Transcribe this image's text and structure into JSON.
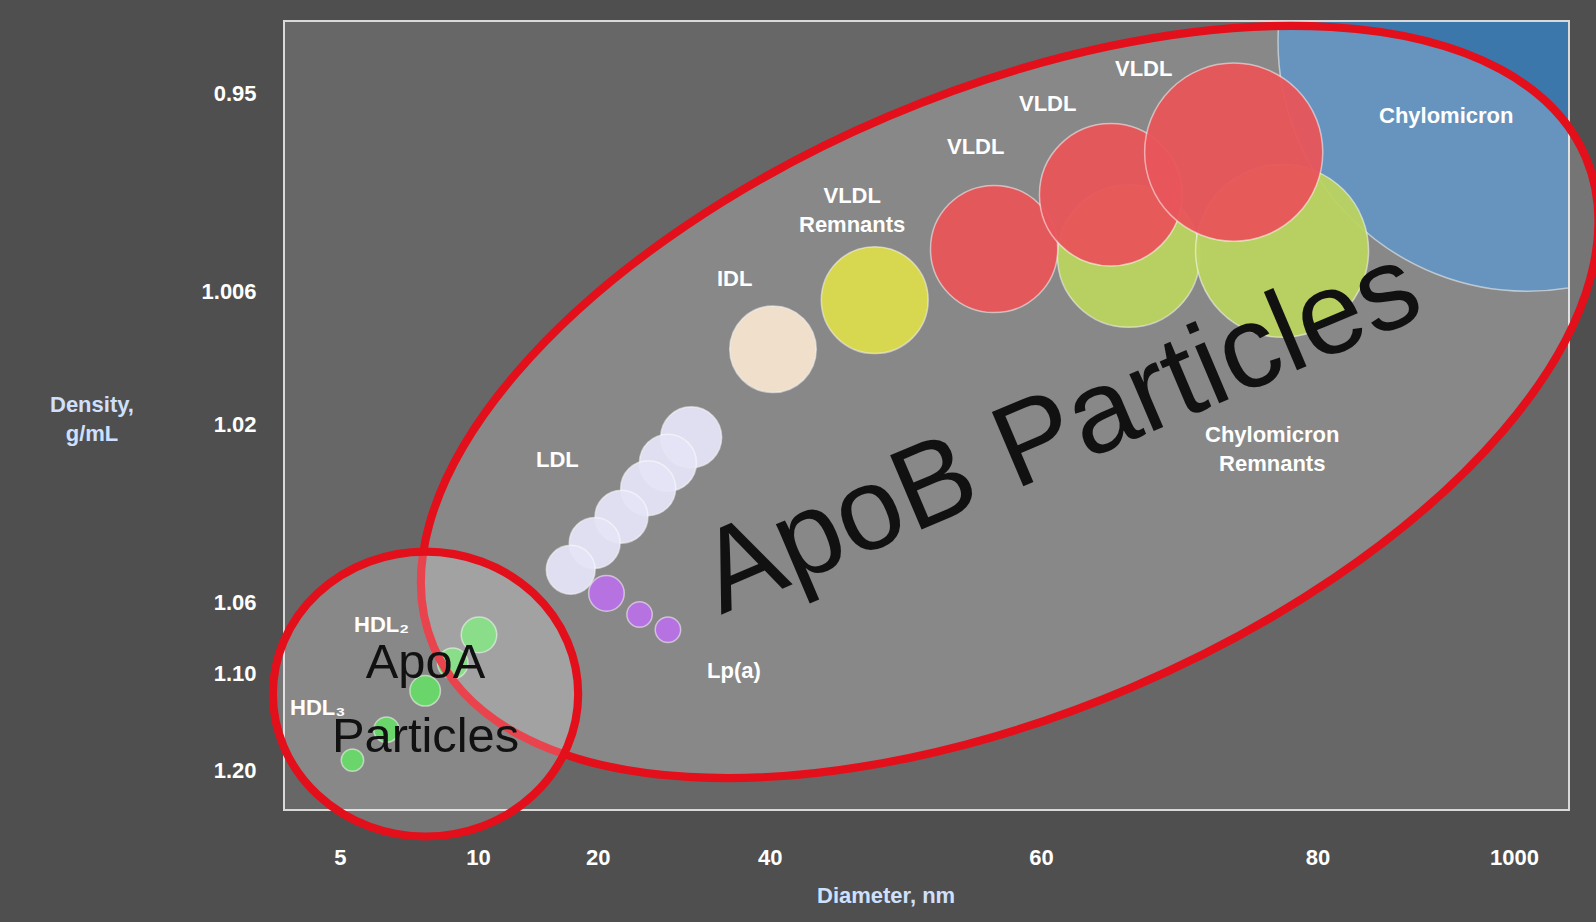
{
  "chart_data": {
    "type": "bubble",
    "x_label": "Diameter, nm",
    "y_label": "Density, g/mL",
    "xlim": [
      3,
      1250
    ],
    "xticks": [
      5,
      10,
      20,
      40,
      60,
      80,
      1000
    ],
    "ylim": [
      1.24,
      0.93
    ],
    "yticks": [
      0.95,
      1.006,
      1.02,
      1.06,
      {
        "value": 1.1,
        "label": "1.10"
      },
      {
        "value": 1.2,
        "label": "1.20"
      }
    ],
    "grid": false,
    "series": [
      {
        "name": "Chylomicron",
        "color": "#3a78b0",
        "x": [
          1060
        ],
        "values": [
          0.9356
        ],
        "sizes": [
          490
        ],
        "label_positions": [
          [
            679,
            0.9563
          ]
        ]
      },
      {
        "name": "Chylomicron Remnants",
        "color": "#a9c834",
        "x": [
          66.3,
          77.4
        ],
        "values": [
          0.996,
          0.9945
        ],
        "sizes": [
          140,
          170
        ],
        "label_positions": [
          [
            76.7,
            1.0257
          ]
        ]
      },
      {
        "name": "VLDL",
        "color": "#e3262c",
        "x": [
          56.5,
          65.0,
          73.9
        ],
        "values": [
          0.994,
          0.9787,
          0.9667
        ],
        "sizes": [
          125,
          140,
          175
        ],
        "label_positions": [
          [
            55.1,
            0.9652
          ],
          [
            60.4,
            0.9529
          ],
          [
            67.4,
            0.9431
          ]
        ]
      },
      {
        "name": "VLDL Remnants",
        "color": "#d4d21c",
        "x": [
          47.7
        ],
        "values": [
          1.0069
        ],
        "sizes": [
          105
        ],
        "label_positions": [
          [
            46.0,
            0.983
          ]
        ]
      },
      {
        "name": "IDL",
        "color": "#f3dcc2",
        "x": [
          40.2
        ],
        "values": [
          1.0121
        ],
        "sizes": [
          85
        ],
        "label_positions": [
          [
            35.8,
            1.0023
          ]
        ]
      },
      {
        "name": "LDL",
        "color": "#dedef5",
        "x": [
          30.8,
          28.1,
          25.8,
          22.7,
          19.7,
          17.7
        ],
        "values": [
          1.023,
          1.0287,
          1.0344,
          1.0408,
          1.0467,
          1.0527
        ],
        "sizes": [
          60,
          56,
          54,
          52,
          50,
          48
        ],
        "label_positions": [
          [
            16.6,
            1.028
          ]
        ]
      },
      {
        "name": "Lp(a)",
        "color": "#a64ae0",
        "x": [
          20.95,
          24.8,
          28.1
        ],
        "values": [
          1.058,
          1.0669,
          1.0754
        ],
        "sizes": [
          35,
          25,
          25
        ],
        "label_positions": [
          [
            35.8,
            1.0983
          ]
        ]
      },
      {
        "name": "HDL₂",
        "color": "#3fcf3f",
        "x": [
          10.04,
          9.07
        ],
        "values": [
          1.0783,
          1.0943
        ],
        "sizes": [
          35,
          30
        ],
        "label_positions": [
          [
            6.48,
            1.0726
          ]
        ]
      },
      {
        "name": "HDL₃",
        "color": "#3fcf3f",
        "x": [
          8.07,
          6.67,
          5.44
        ],
        "values": [
          1.1179,
          1.158,
          1.1895
        ],
        "sizes": [
          30,
          25,
          22
        ],
        "label_positions": [
          [
            4.19,
            1.1347
          ]
        ]
      }
    ],
    "annotations": [
      "ApoB Particles",
      "ApoA Particles"
    ]
  }
}
